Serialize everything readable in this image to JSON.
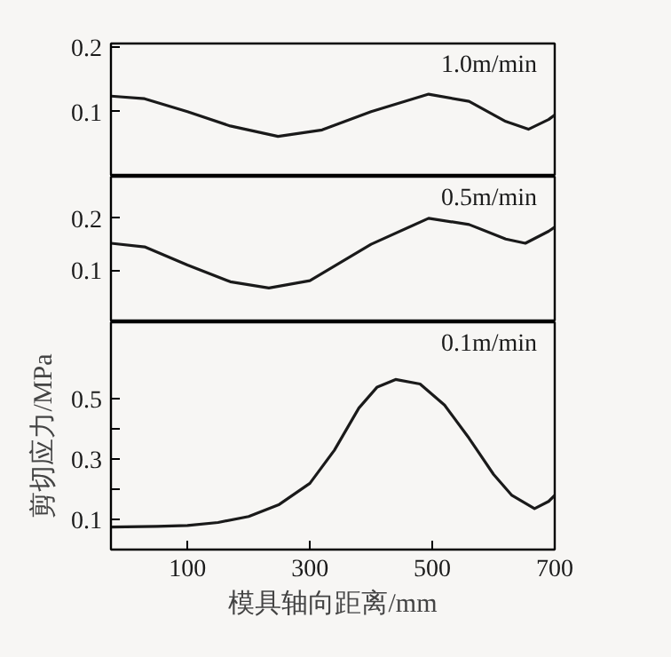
{
  "chart_data": [
    {
      "type": "line",
      "xlim": [
        -25,
        700
      ],
      "ylim": [
        0,
        0.205
      ],
      "yticks": [
        0.1,
        0.2
      ],
      "tick_labels": "y",
      "series": [
        {
          "name": "1.0m/min",
          "color": "#1a1a1a",
          "x": [
            -25,
            30,
            100,
            170,
            248,
            320,
            400,
            494,
            560,
            620,
            657,
            690,
            700
          ],
          "values": [
            0.124,
            0.12,
            0.1,
            0.078,
            0.062,
            0.072,
            0.1,
            0.127,
            0.116,
            0.085,
            0.073,
            0.088,
            0.095
          ]
        }
      ]
    },
    {
      "type": "line",
      "xlim": [
        -25,
        700
      ],
      "ylim": [
        0,
        0.28
      ],
      "yticks": [
        0.1,
        0.2
      ],
      "tick_labels": "y",
      "series": [
        {
          "name": "0.5m/min",
          "color": "#1a1a1a",
          "x": [
            -25,
            30,
            100,
            170,
            233,
            300,
            400,
            494,
            560,
            620,
            652,
            690,
            700
          ],
          "values": [
            0.152,
            0.145,
            0.11,
            0.078,
            0.066,
            0.08,
            0.15,
            0.2,
            0.188,
            0.16,
            0.152,
            0.175,
            0.183
          ]
        }
      ]
    },
    {
      "type": "line",
      "xlim": [
        -25,
        700
      ],
      "ylim": [
        0,
        0.755
      ],
      "xticks": [
        100,
        300,
        500,
        700
      ],
      "yticks": [
        0.1,
        {
          "value": 0.2,
          "label": null
        },
        0.3,
        {
          "value": 0.4,
          "label": null
        },
        0.5
      ],
      "xlabel": "模具轴向距离/mm",
      "ylabel": "剪切应力/MPa",
      "series": [
        {
          "name": "0.1m/min",
          "color": "#1a1a1a",
          "x": [
            -25,
            50,
            100,
            150,
            200,
            250,
            300,
            340,
            380,
            410,
            440,
            480,
            520,
            560,
            600,
            630,
            667,
            690,
            700
          ],
          "values": [
            0.075,
            0.077,
            0.08,
            0.09,
            0.11,
            0.15,
            0.22,
            0.33,
            0.47,
            0.54,
            0.565,
            0.55,
            0.48,
            0.37,
            0.25,
            0.18,
            0.136,
            0.16,
            0.18
          ]
        }
      ]
    }
  ]
}
